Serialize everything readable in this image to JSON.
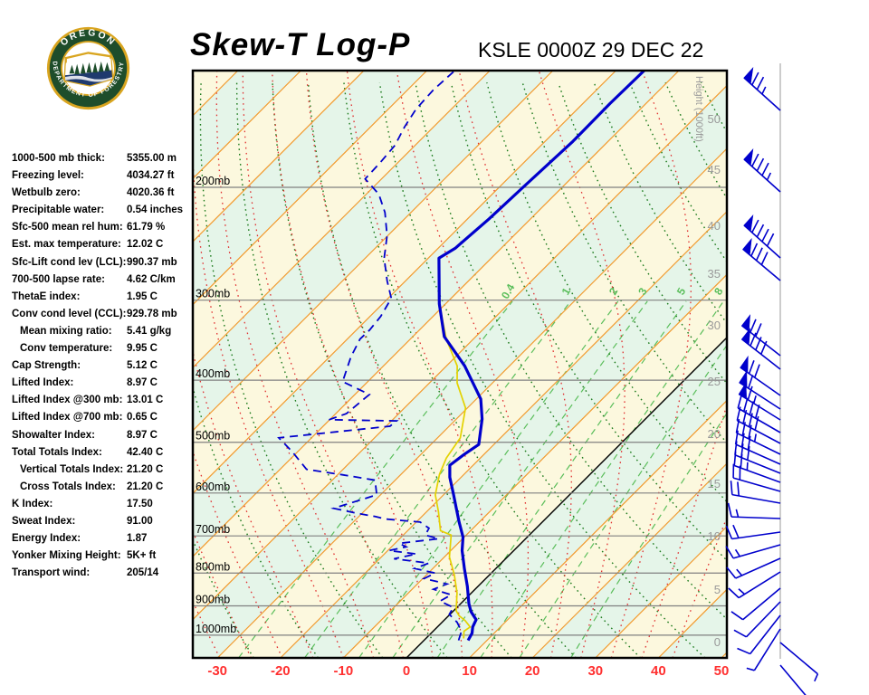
{
  "header": {
    "title": "Skew-T Log-P",
    "station": "KSLE 0000Z 29 DEC 22",
    "logo": {
      "arc_top": "OREGON",
      "arc_bottom": "DEPARTMENT OF FORESTRY"
    }
  },
  "stats": {
    "rows": [
      {
        "label": "1000-500 mb thick:",
        "value": "5355.00 m",
        "indent": false
      },
      {
        "label": "Freezing level:",
        "value": "4034.27 ft",
        "indent": false
      },
      {
        "label": "Wetbulb zero:",
        "value": "4020.36 ft",
        "indent": false
      },
      {
        "label": "Precipitable water:",
        "value": "0.54 inches",
        "indent": false
      },
      {
        "label": "Sfc-500 mean rel hum:",
        "value": "61.79 %",
        "indent": false
      },
      {
        "label": "Est. max temperature:",
        "value": "12.02 C",
        "indent": false
      },
      {
        "label": "Sfc-Lift cond lev (LCL):",
        "value": "990.37 mb",
        "indent": false
      },
      {
        "label": "700-500 lapse rate:",
        "value": "4.62 C/km",
        "indent": false
      },
      {
        "label": "ThetaE index:",
        "value": "1.95 C",
        "indent": false
      },
      {
        "label": "Conv cond level (CCL):",
        "value": "929.78 mb",
        "indent": false
      },
      {
        "label": "Mean mixing ratio:",
        "value": "5.41 g/kg",
        "indent": true
      },
      {
        "label": "Conv temperature:",
        "value": "9.95 C",
        "indent": true
      },
      {
        "label": "Cap Strength:",
        "value": "5.12 C",
        "indent": false
      },
      {
        "label": "Lifted Index:",
        "value": "8.97 C",
        "indent": false
      },
      {
        "label": "Lifted Index @300 mb:",
        "value": "13.01 C",
        "indent": false
      },
      {
        "label": "Lifted Index @700 mb:",
        "value": "0.65 C",
        "indent": false
      },
      {
        "label": "Showalter Index:",
        "value": "8.97 C",
        "indent": false
      },
      {
        "label": "Total Totals Index:",
        "value": "42.40 C",
        "indent": false
      },
      {
        "label": "Vertical Totals Index:",
        "value": "21.20 C",
        "indent": true
      },
      {
        "label": "Cross Totals Index:",
        "value": "21.20 C",
        "indent": true
      },
      {
        "label": "K Index:",
        "value": "17.50",
        "indent": false
      },
      {
        "label": "Sweat Index:",
        "value": "91.00",
        "indent": false
      },
      {
        "label": "Energy Index:",
        "value": "1.87",
        "indent": false
      },
      {
        "label": "Yonker Mixing Height:",
        "value": "5K+ ft",
        "indent": false
      },
      {
        "label": "Transport wind:",
        "value": "205/14",
        "indent": false
      }
    ]
  },
  "chart_data": {
    "type": "line",
    "subtype": "skew-t-log-p",
    "title": "Skew-T Log-P",
    "station": "KSLE 0000Z 29 DEC 22",
    "xlabel_ticks_c": [
      -30,
      -20,
      -10,
      0,
      10,
      20,
      30,
      40,
      50
    ],
    "pressure_levels_mb": [
      200,
      300,
      400,
      500,
      600,
      700,
      800,
      900,
      1000
    ],
    "pressure_label_suffix": "mb",
    "height_axis": {
      "label": "Height (1000ft)",
      "ticks": [
        [
          "50",
          132
        ],
        [
          "45",
          188
        ],
        [
          "40",
          250
        ],
        [
          "35",
          303
        ],
        [
          "30",
          360
        ],
        [
          "25",
          422
        ],
        [
          "20",
          480
        ],
        [
          "15",
          535
        ],
        [
          "10",
          593
        ],
        [
          "5",
          652
        ],
        [
          "0",
          710
        ]
      ]
    },
    "mixing_ratio_lines_gkg": [
      0.4,
      1,
      2,
      3,
      5,
      8,
      12,
      20
    ],
    "mixing_ratio_labels": [
      "0.4",
      "1",
      "2",
      "3",
      "5",
      "8"
    ],
    "dry_adiabats_theta_c": {
      "min": -40,
      "max": 170,
      "step": 10
    },
    "moist_adiabats_thetaw_c": {
      "min": -60,
      "max": 40,
      "step": 5
    },
    "isotherms_c": {
      "min": -130,
      "max": 60,
      "step": 10
    },
    "temperature_profile_p_t": [
      [
        131,
        -55.5
      ],
      [
        148,
        -55.7
      ],
      [
        170,
        -55.6
      ],
      [
        200,
        -56.2
      ],
      [
        224,
        -56.6
      ],
      [
        249,
        -57.3
      ],
      [
        258,
        -58.3
      ],
      [
        304,
        -51.0
      ],
      [
        342,
        -45.0
      ],
      [
        380,
        -37.1
      ],
      [
        428,
        -29.3
      ],
      [
        460,
        -25.9
      ],
      [
        504,
        -22.4
      ],
      [
        521,
        -23.1
      ],
      [
        543,
        -23.7
      ],
      [
        567,
        -21.8
      ],
      [
        604,
        -18.4
      ],
      [
        632,
        -16.0
      ],
      [
        666,
        -13.2
      ],
      [
        703,
        -10.2
      ],
      [
        738,
        -8.2
      ],
      [
        787,
        -5.0
      ],
      [
        839,
        -1.7
      ],
      [
        893,
        1.3
      ],
      [
        919,
        2.9
      ],
      [
        946,
        5.0
      ],
      [
        971,
        5.6
      ],
      [
        993,
        6.5
      ],
      [
        1019,
        7.0
      ]
    ],
    "dewpoint_profile_p_t": [
      [
        132,
        -85.6
      ],
      [
        141,
        -85.9
      ],
      [
        151,
        -85.6
      ],
      [
        161,
        -84.6
      ],
      [
        172,
        -83.2
      ],
      [
        183,
        -82.8
      ],
      [
        194,
        -82.6
      ],
      [
        205,
        -78.0
      ],
      [
        219,
        -74.1
      ],
      [
        238,
        -70.1
      ],
      [
        258,
        -67.0
      ],
      [
        280,
        -62.9
      ],
      [
        298,
        -59.5
      ],
      [
        318,
        -58.3
      ],
      [
        334,
        -57.9
      ],
      [
        345,
        -58.0
      ],
      [
        368,
        -56.6
      ],
      [
        402,
        -54.0
      ],
      [
        421,
        -47.7
      ],
      [
        451,
        -48.3
      ],
      [
        461,
        -50.1
      ],
      [
        463,
        -39.2
      ],
      [
        472,
        -39.4
      ],
      [
        492,
        -55.2
      ],
      [
        517,
        -50.9
      ],
      [
        551,
        -45.8
      ],
      [
        562,
        -39.2
      ],
      [
        573,
        -33.2
      ],
      [
        604,
        -30.6
      ],
      [
        634,
        -35.3
      ],
      [
        644,
        -31.3
      ],
      [
        653,
        -27.4
      ],
      [
        659,
        -25.3
      ],
      [
        666,
        -19.4
      ],
      [
        681,
        -17.0
      ],
      [
        698,
        -16.5
      ],
      [
        707,
        -13.8
      ],
      [
        719,
        -19.3
      ],
      [
        728,
        -17.7
      ],
      [
        738,
        -19.8
      ],
      [
        747,
        -14.9
      ],
      [
        760,
        -17.7
      ],
      [
        772,
        -11.5
      ],
      [
        787,
        -12.9
      ],
      [
        800,
        -8.9
      ],
      [
        816,
        -9.8
      ],
      [
        832,
        -5.3
      ],
      [
        848,
        -6.6
      ],
      [
        865,
        -2.9
      ],
      [
        885,
        -3.7
      ],
      [
        905,
        -0.6
      ],
      [
        928,
        -0.1
      ],
      [
        955,
        2.4
      ],
      [
        986,
        4.5
      ],
      [
        1019,
        5.5
      ]
    ],
    "wetbulb_profile_p_t": [
      [
        304,
        -51.0
      ],
      [
        345,
        -44.3
      ],
      [
        380,
        -38.3
      ],
      [
        404,
        -35.6
      ],
      [
        442,
        -30.3
      ],
      [
        492,
        -26.4
      ],
      [
        529,
        -25.4
      ],
      [
        561,
        -23.9
      ],
      [
        604,
        -21.3
      ],
      [
        642,
        -18.1
      ],
      [
        687,
        -14.8
      ],
      [
        698,
        -12.4
      ],
      [
        755,
        -9.2
      ],
      [
        805,
        -5.6
      ],
      [
        859,
        -2.3
      ],
      [
        916,
        0.4
      ],
      [
        933,
        1.7
      ],
      [
        949,
        3.4
      ],
      [
        971,
        5.2
      ],
      [
        986,
        4.9
      ],
      [
        1012,
        6.0
      ]
    ],
    "wind_barbs": [
      [
        122,
        42,
        1,
        2,
        1
      ],
      [
        212,
        42,
        1,
        3,
        1
      ],
      [
        285,
        42,
        1,
        4,
        0
      ],
      [
        310,
        40,
        1,
        3,
        0
      ],
      [
        393,
        38,
        1,
        2,
        0
      ],
      [
        408,
        38,
        1,
        3,
        0
      ],
      [
        437,
        35,
        1,
        2,
        0
      ],
      [
        452,
        33,
        1,
        1,
        0
      ],
      [
        464,
        32,
        1,
        1,
        1
      ],
      [
        478,
        30,
        0,
        4,
        0
      ],
      [
        490,
        28,
        0,
        4,
        0
      ],
      [
        502,
        26,
        0,
        3,
        1
      ],
      [
        513,
        24,
        0,
        3,
        0
      ],
      [
        523,
        22,
        0,
        3,
        0
      ],
      [
        533,
        20,
        0,
        2,
        1
      ],
      [
        543,
        16,
        0,
        2,
        0
      ],
      [
        556,
        10,
        0,
        2,
        0
      ],
      [
        573,
        2,
        0,
        1,
        1
      ],
      [
        588,
        -8,
        0,
        2,
        0
      ],
      [
        602,
        -16,
        0,
        1,
        1
      ],
      [
        617,
        -24,
        0,
        1,
        1
      ],
      [
        632,
        -32,
        0,
        1,
        1
      ],
      [
        650,
        -40,
        0,
        1,
        0
      ],
      [
        665,
        -46,
        0,
        1,
        0
      ],
      [
        680,
        -52,
        0,
        1,
        0
      ],
      [
        695,
        -58,
        0,
        0,
        1
      ],
      [
        710,
        -140,
        0,
        0,
        1
      ],
      [
        735,
        -130,
        0,
        0,
        1
      ]
    ],
    "colors": {
      "band_yellow": "#FCF8DE",
      "band_green": "#E5F5E9",
      "isotherm": "#F29A2E",
      "zero_isotherm": "#000000",
      "dry_adiabat": "#1B7A1B",
      "moist_adiabat": "#E03030",
      "mixing_ratio": "#5BBE5B",
      "grid": "#808080",
      "temp_curve": "#0000CC",
      "dewpoint_curve": "#0000CC",
      "wetbulb_curve": "#E3D200",
      "barb": "#0000CC",
      "staff": "#CCCCCC",
      "temp_axis_label": "#FF3030",
      "height_axis_label": "#999999",
      "pressure_label": "#000000"
    }
  }
}
